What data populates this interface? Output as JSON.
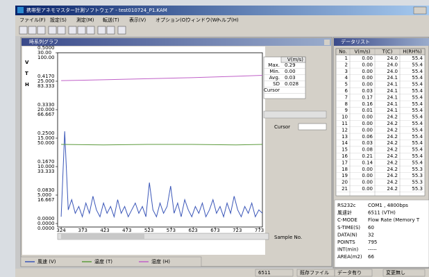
{
  "window_title": "携帯型アネモマスター計測ソフトウェア - test010724_P1.KAM",
  "menu": [
    "ファイル(F)",
    "設定(S)",
    "測定(M)",
    "転送(T)",
    "表示(V)",
    "オプション(O)",
    "ウィンドウ(W)",
    "ヘルプ(H)"
  ],
  "graph_window": {
    "title": "時系列グラフ",
    "chart": {
      "type": "line",
      "axis_letters": [
        "V",
        "T",
        "H"
      ],
      "x_label": "Sample No.",
      "xlim": [
        316,
        780
      ],
      "xticks": [
        324,
        373,
        423,
        473,
        523,
        573,
        623,
        673,
        723,
        773
      ],
      "ylim": [
        0,
        0.5
      ],
      "yticks": [
        {
          "value": 0.5,
          "label": "0.5000"
        },
        {
          "value": 0.417,
          "label": "0.4170"
        },
        {
          "value": 0.333,
          "label": "0.3330"
        },
        {
          "value": 0.25,
          "label": "0.2500"
        },
        {
          "value": 0.167,
          "label": "0.1670"
        },
        {
          "value": 0.083,
          "label": "0.0830"
        },
        {
          "value": 0,
          "label": "0.0000"
        }
      ],
      "y2lim": [
        0,
        30
      ],
      "y2ticks": [
        {
          "value": 30,
          "label": "30.00"
        },
        {
          "value": 25,
          "label": "25.000"
        },
        {
          "value": 20,
          "label": "20.000"
        },
        {
          "value": 15,
          "label": "15.000"
        },
        {
          "value": 10,
          "label": "10.000"
        },
        {
          "value": 5,
          "label": "5.000"
        },
        {
          "value": 0,
          "label": "0.0000"
        }
      ],
      "y3lim": [
        0,
        100
      ],
      "y3ticks": [
        {
          "value": 100,
          "label": "100.00"
        },
        {
          "value": 83.333,
          "label": "83.333"
        },
        {
          "value": 66.667,
          "label": "66.667"
        },
        {
          "value": 50,
          "label": "50.000"
        },
        {
          "value": 33.333,
          "label": "33.333"
        },
        {
          "value": 16.667,
          "label": "16.667"
        },
        {
          "value": 0,
          "label": "0.0000"
        }
      ],
      "series": [
        {
          "name": "風速 (V)",
          "color": "#3a56b8",
          "axis": "y",
          "x": [
            324,
            332,
            340,
            348,
            356,
            364,
            372,
            380,
            388,
            396,
            404,
            412,
            420,
            428,
            436,
            444,
            452,
            460,
            468,
            476,
            484,
            492,
            500,
            508,
            516,
            524,
            532,
            540,
            548,
            556,
            564,
            572,
            580,
            588,
            596,
            604,
            612,
            620,
            628,
            636,
            644,
            652,
            660,
            668,
            676,
            684,
            692,
            700,
            708,
            716,
            724,
            732,
            740,
            748,
            756,
            764,
            772,
            780
          ],
          "values": [
            0.02,
            0.27,
            0.04,
            0.07,
            0.03,
            0.05,
            0.02,
            0.06,
            0.03,
            0.08,
            0.04,
            0.02,
            0.06,
            0.03,
            0.05,
            0.02,
            0.07,
            0.03,
            0.05,
            0.02,
            0.04,
            0.06,
            0.03,
            0.05,
            0.02,
            0.12,
            0.04,
            0.02,
            0.06,
            0.03,
            0.05,
            0.11,
            0.03,
            0.06,
            0.02,
            0.07,
            0.04,
            0.02,
            0.05,
            0.03,
            0.06,
            0.02,
            0.04,
            0.07,
            0.03,
            0.05,
            0.02,
            0.06,
            0.03,
            0.08,
            0.04,
            0.02,
            0.05,
            0.03,
            0.06,
            0.02,
            0.04,
            0.03
          ]
        },
        {
          "name": "温度 (T)",
          "color": "#5c9a3c",
          "axis": "y2",
          "x": [
            324,
            420,
            520,
            620,
            720,
            780
          ],
          "values": [
            13.9,
            13.8,
            13.9,
            13.9,
            13.8,
            13.9
          ]
        },
        {
          "name": "湿度 (H)",
          "color": "#c060c8",
          "axis": "y3",
          "x": [
            324,
            420,
            520,
            620,
            720,
            780
          ],
          "values": [
            83.7,
            84.2,
            84.8,
            85.4,
            86.2,
            86.8
          ]
        }
      ]
    },
    "stats": {
      "header": "V(m/s)",
      "row_labels": [
        "Max.",
        "Min.",
        "Avg.",
        "SD",
        "Cursor"
      ],
      "values": [
        "0.29",
        "0.00",
        "0.03",
        "0.028"
      ]
    },
    "cursor_label": "Cursor"
  },
  "data_window": {
    "title": "データリスト",
    "columns": [
      "No.",
      "V(m/s)",
      "T(C)",
      "H(RH%)"
    ],
    "rows": [
      [
        "1",
        "0.00",
        "24.0",
        "55.4"
      ],
      [
        "2",
        "0.00",
        "24.0",
        "55.4"
      ],
      [
        "3",
        "0.00",
        "24.0",
        "55.4"
      ],
      [
        "4",
        "0.00",
        "24.1",
        "55.4"
      ],
      [
        "5",
        "0.00",
        "24.1",
        "55.4"
      ],
      [
        "6",
        "0.03",
        "24.1",
        "55.4"
      ],
      [
        "7",
        "0.17",
        "24.1",
        "55.4"
      ],
      [
        "8",
        "0.16",
        "24.1",
        "55.4"
      ],
      [
        "9",
        "0.01",
        "24.1",
        "55.4"
      ],
      [
        "10",
        "0.00",
        "24.2",
        "55.4"
      ],
      [
        "11",
        "0.00",
        "24.2",
        "55.4"
      ],
      [
        "12",
        "0.00",
        "24.2",
        "55.4"
      ],
      [
        "13",
        "0.06",
        "24.2",
        "55.4"
      ],
      [
        "14",
        "0.03",
        "24.2",
        "55.4"
      ],
      [
        "15",
        "0.08",
        "24.2",
        "55.4"
      ],
      [
        "16",
        "0.21",
        "24.2",
        "55.4"
      ],
      [
        "17",
        "0.14",
        "24.2",
        "55.4"
      ],
      [
        "18",
        "0.00",
        "24.2",
        "55.3"
      ],
      [
        "19",
        "0.00",
        "24.2",
        "55.3"
      ],
      [
        "20",
        "0.00",
        "24.2",
        "55.3"
      ],
      [
        "21",
        "0.00",
        "24.2",
        "55.3"
      ]
    ],
    "info": [
      [
        "RS232c",
        "COM1 , 4800bps"
      ],
      [
        "風速計",
        "6511 (VTH)"
      ],
      [
        "C-MODE",
        "Flow Rate (Memory T"
      ],
      [
        "S-TIME(S)",
        "60"
      ],
      [
        "DATA(N)",
        "32"
      ],
      [
        "POINTS",
        "795"
      ],
      [
        "INT(min)",
        "-----"
      ],
      [
        "AREA(m2)",
        "66"
      ]
    ]
  },
  "status": [
    "6511",
    "既存ファイル",
    "データ有り",
    "変更無し"
  ]
}
